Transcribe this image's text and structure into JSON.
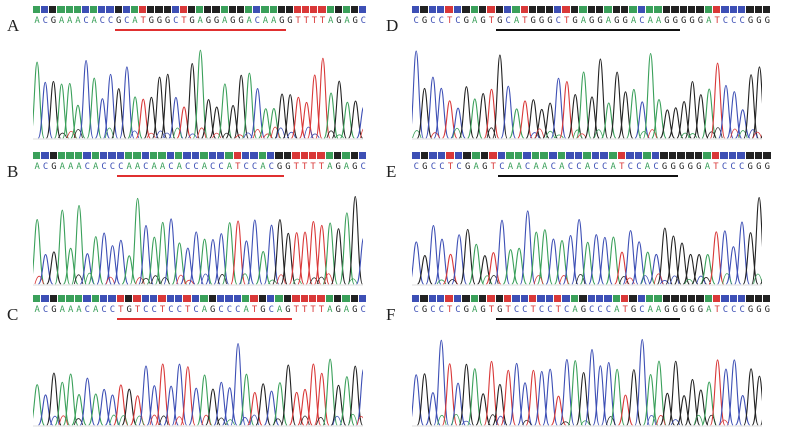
{
  "colors": {
    "A": "#3aa05a",
    "C": "#3d4fb5",
    "G": "#222222",
    "T": "#d93838",
    "N": "#9aa0a6",
    "underline_left": "#e03030",
    "underline_right": "#111111"
  },
  "panels": [
    {
      "label": "A",
      "seq": "ACGAAACACCGCATGGGCTGAGGAGGACAAGGTTTTAGAGC",
      "underline": [
        10,
        31
      ]
    },
    {
      "label": "B",
      "seq": "ACGAAACACCCAACAACACCACCATCCACGGTTTTAGAGC",
      "underline": [
        10,
        30
      ]
    },
    {
      "label": "C",
      "seq": "ACGAAACACCTGTCCTCCTCAGCCCATGCAGTTTTAGAGC",
      "underline": [
        10,
        31
      ]
    },
    {
      "label": "D",
      "seq": "CGCCTCGAGTGCATGGGCTGAGGAGGACAAGGGGGATCCCGGG",
      "underline": [
        10,
        32
      ]
    },
    {
      "label": "E",
      "seq": "CGCCTCGAGTCAACAACACCACCATCCACGGGGGATCCCGGG",
      "underline": [
        10,
        31
      ]
    },
    {
      "label": "F",
      "seq": "CGCCTCGAGTGTCCTCCTCAGCCCATGCAAGGGGGATCCCGGG",
      "underline": [
        10,
        32
      ]
    }
  ]
}
